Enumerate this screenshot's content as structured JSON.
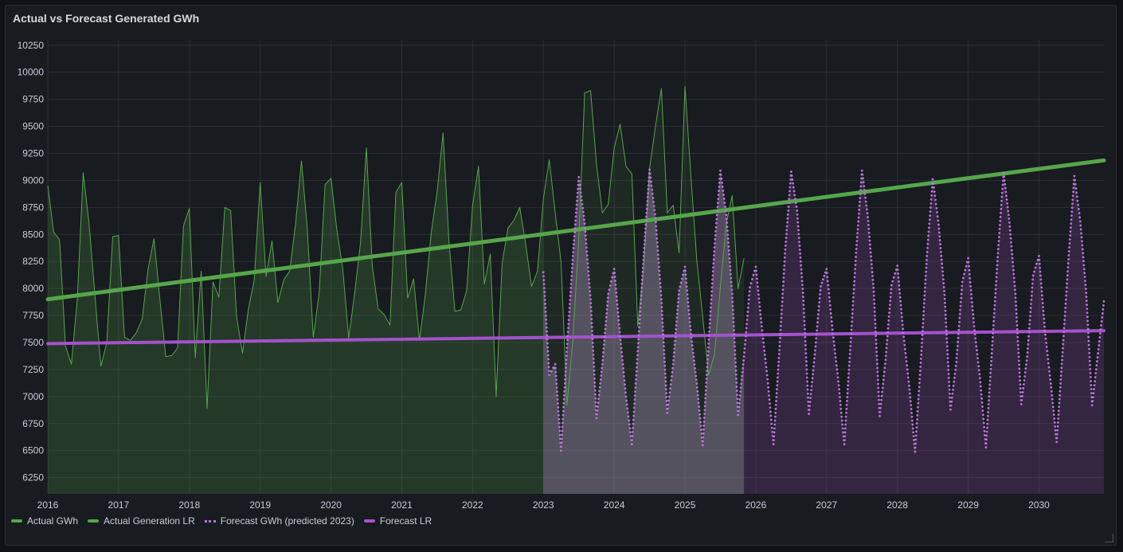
{
  "panel": {
    "title": "Actual vs Forecast Generated GWh"
  },
  "colors": {
    "actual": "#56a64b",
    "actual_fill": "rgba(86,166,75,0.22)",
    "forecast": "#a352cc",
    "forecast_dot": "#b877d9",
    "forecast_fill": "rgba(163,82,204,0.20)",
    "overlap_fill": "rgba(170,170,180,0.28)",
    "grid": "#2c2e33",
    "tick": "#ccccdc"
  },
  "chart_data": {
    "type": "line",
    "title": "Actual vs Forecast Generated GWh",
    "xlabel": "",
    "ylabel": "",
    "xlim": [
      "2016-01",
      "2030-12"
    ],
    "ylim": [
      6100,
      10300
    ],
    "y_ticks": [
      6250,
      6500,
      6750,
      7000,
      7250,
      7500,
      7750,
      8000,
      8250,
      8500,
      8750,
      9000,
      9250,
      9500,
      9750,
      10000,
      10250
    ],
    "x_ticks": [
      "2016",
      "2017",
      "2018",
      "2019",
      "2020",
      "2021",
      "2022",
      "2023",
      "2024",
      "2025",
      "2026",
      "2027",
      "2028",
      "2029",
      "2030"
    ],
    "grid": true,
    "legend_position": "bottom-left",
    "series": [
      {
        "name": "Actual GWh",
        "style": "line-fill",
        "start": "2016-01",
        "step": "month",
        "values": [
          8950,
          8520,
          8450,
          7470,
          7300,
          7900,
          9070,
          8600,
          7930,
          7280,
          7500,
          8480,
          8490,
          7550,
          7520,
          7590,
          7720,
          8180,
          8460,
          7900,
          7370,
          7380,
          7450,
          8580,
          8740,
          7360,
          8160,
          6890,
          8060,
          7920,
          8750,
          8720,
          7740,
          7400,
          7810,
          8080,
          8980,
          8110,
          8440,
          7870,
          8080,
          8160,
          8600,
          9180,
          8540,
          7550,
          7960,
          8960,
          9020,
          8540,
          8180,
          7540,
          7950,
          8420,
          9300,
          8210,
          7810,
          7760,
          7660,
          8890,
          8980,
          7910,
          8090,
          7520,
          7950,
          8520,
          8900,
          9440,
          8430,
          7790,
          7800,
          7980,
          8770,
          9130,
          8040,
          8320,
          7000,
          8230,
          8560,
          8630,
          8750,
          8410,
          8020,
          8160,
          8830,
          9190,
          8700,
          8240,
          6920,
          7530,
          8470,
          9810,
          9830,
          9150,
          8700,
          8780,
          9300,
          9520,
          9130,
          9060,
          7650,
          8200,
          9110,
          9500,
          9850,
          8700,
          8770,
          8330,
          9870,
          9040,
          8260,
          7740,
          7200,
          7390,
          8020,
          8600,
          8860,
          8000,
          8280
        ]
      },
      {
        "name": "Actual Generation LR",
        "style": "thick-line",
        "points": [
          [
            "2016-01",
            7900
          ],
          [
            "2030-12",
            9185
          ]
        ]
      },
      {
        "name": "Forecast GWh (predicted 2023)",
        "style": "dotted-fill",
        "start": "2023-01",
        "step": "month",
        "values": [
          8150,
          7200,
          7300,
          6500,
          7450,
          8300,
          9030,
          8600,
          7900,
          6800,
          7300,
          7950,
          8180,
          7560,
          7000,
          6560,
          7420,
          8300,
          9100,
          8650,
          7900,
          6850,
          7300,
          7980,
          8200,
          7580,
          7120,
          6550,
          7490,
          8380,
          9090,
          8680,
          7950,
          6830,
          7370,
          8010,
          8200,
          7650,
          7160,
          6560,
          7430,
          8360,
          9080,
          8720,
          7960,
          6840,
          7390,
          8020,
          8180,
          7620,
          7140,
          6560,
          7430,
          8330,
          9090,
          8660,
          7970,
          6820,
          7340,
          8030,
          8210,
          7590,
          7100,
          6490,
          7350,
          8300,
          9010,
          8590,
          7940,
          6880,
          7320,
          8060,
          8280,
          7650,
          7170,
          6530,
          7400,
          8290,
          9070,
          8610,
          7950,
          6930,
          7370,
          8120,
          8300,
          7610,
          7120,
          6580,
          7410,
          8270,
          9040,
          8620,
          7960,
          6920,
          7400,
          7880
        ]
      },
      {
        "name": "Forecast LR",
        "style": "thick-line",
        "points": [
          [
            "2016-01",
            7490
          ],
          [
            "2030-12",
            7610
          ]
        ]
      }
    ]
  }
}
